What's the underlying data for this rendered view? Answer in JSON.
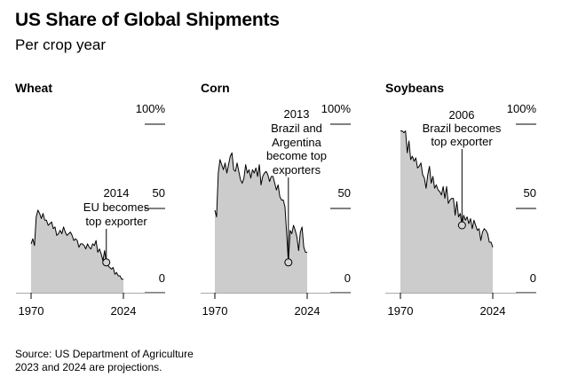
{
  "header": {
    "title": "US Share of Global Shipments",
    "subtitle": "Per crop year"
  },
  "footer": {
    "source": "Source: US Department of Agriculture",
    "note": "2023 and 2024 are projections."
  },
  "colors": {
    "area_fill": "#cccccc",
    "line": "#000000",
    "gridline": "#000000",
    "baseline": "#aaaaaa",
    "marker_fill": "#d4d4d4"
  },
  "chart_data": [
    {
      "type": "area",
      "title": "Wheat",
      "xlim": [
        1970,
        2024
      ],
      "ylim": [
        0,
        100
      ],
      "x_ticks": [
        "1970",
        "2024"
      ],
      "y_ticks": [
        "100%",
        "50",
        "0"
      ],
      "annotation": {
        "year": 2014,
        "value": 18,
        "lines": [
          "2014",
          "EU becomes",
          "top exporter"
        ]
      },
      "x": [
        1970,
        1971,
        1972,
        1973,
        1974,
        1975,
        1976,
        1977,
        1978,
        1979,
        1980,
        1981,
        1982,
        1983,
        1984,
        1985,
        1986,
        1987,
        1988,
        1989,
        1990,
        1991,
        1992,
        1993,
        1994,
        1995,
        1996,
        1997,
        1998,
        1999,
        2000,
        2001,
        2002,
        2003,
        2004,
        2005,
        2006,
        2007,
        2008,
        2009,
        2010,
        2011,
        2012,
        2013,
        2014,
        2015,
        2016,
        2017,
        2018,
        2019,
        2020,
        2021,
        2022,
        2023,
        2024
      ],
      "values": [
        29,
        32,
        28,
        45,
        49,
        47,
        44,
        47,
        43,
        43,
        40,
        41,
        42,
        38,
        39,
        34,
        35,
        37,
        35,
        39,
        36,
        34,
        35,
        36,
        34,
        31,
        32,
        31,
        27,
        29,
        29,
        28,
        26,
        29,
        27,
        26,
        29,
        28,
        31,
        24,
        26,
        23,
        19,
        25,
        18,
        16,
        15,
        14,
        15,
        11,
        12,
        10,
        10,
        8,
        8
      ]
    },
    {
      "type": "area",
      "title": "Corn",
      "xlim": [
        1970,
        2024
      ],
      "ylim": [
        0,
        100
      ],
      "x_ticks": [
        "1970",
        "2024"
      ],
      "y_ticks": [
        "100%",
        "50",
        "0"
      ],
      "annotation": {
        "year": 2013,
        "value": 18,
        "lines": [
          "2013",
          "Brazil and",
          "Argentina",
          "become top",
          "exporters"
        ]
      },
      "x": [
        1970,
        1971,
        1972,
        1973,
        1974,
        1975,
        1976,
        1977,
        1978,
        1979,
        1980,
        1981,
        1982,
        1983,
        1984,
        1985,
        1986,
        1987,
        1988,
        1989,
        1990,
        1991,
        1992,
        1993,
        1994,
        1995,
        1996,
        1997,
        1998,
        1999,
        2000,
        2001,
        2002,
        2003,
        2004,
        2005,
        2006,
        2007,
        2008,
        2009,
        2010,
        2011,
        2012,
        2013,
        2014,
        2015,
        2016,
        2017,
        2018,
        2019,
        2020,
        2021,
        2022,
        2023,
        2024
      ],
      "values": [
        49,
        45,
        71,
        79,
        76,
        73,
        77,
        71,
        76,
        81,
        83,
        73,
        72,
        77,
        72,
        67,
        65,
        68,
        76,
        71,
        73,
        68,
        73,
        71,
        74,
        69,
        76,
        64,
        69,
        71,
        72,
        70,
        66,
        69,
        69,
        65,
        61,
        64,
        57,
        55,
        55,
        51,
        35,
        18,
        37,
        35,
        40,
        37,
        33,
        25,
        36,
        39,
        27,
        24,
        24
      ]
    },
    {
      "type": "area",
      "title": "Soybeans",
      "xlim": [
        1970,
        2024
      ],
      "ylim": [
        0,
        100
      ],
      "x_ticks": [
        "1970",
        "2024"
      ],
      "y_ticks": [
        "100%",
        "50",
        "0"
      ],
      "annotation": {
        "year": 2006,
        "value": 40,
        "lines": [
          "2006",
          "Brazil becomes",
          "top exporter"
        ]
      },
      "x": [
        1970,
        1971,
        1972,
        1973,
        1974,
        1975,
        1976,
        1977,
        1978,
        1979,
        1980,
        1981,
        1982,
        1983,
        1984,
        1985,
        1986,
        1987,
        1988,
        1989,
        1990,
        1991,
        1992,
        1993,
        1994,
        1995,
        1996,
        1997,
        1998,
        1999,
        2000,
        2001,
        2002,
        2003,
        2004,
        2005,
        2006,
        2007,
        2008,
        2009,
        2010,
        2011,
        2012,
        2013,
        2014,
        2015,
        2016,
        2017,
        2018,
        2019,
        2020,
        2021,
        2022,
        2023,
        2024
      ],
      "values": [
        96,
        96,
        95,
        96,
        83,
        90,
        79,
        81,
        78,
        80,
        74,
        75,
        77,
        70,
        68,
        62,
        70,
        75,
        65,
        69,
        62,
        64,
        61,
        60,
        58,
        63,
        56,
        63,
        53,
        55,
        56,
        56,
        46,
        54,
        45,
        47,
        40,
        46,
        43,
        45,
        41,
        44,
        38,
        43,
        40,
        37,
        38,
        31,
        36,
        38,
        37,
        35,
        30,
        30,
        27
      ]
    }
  ],
  "annotation_hint": "Chart values estimated from the figure"
}
